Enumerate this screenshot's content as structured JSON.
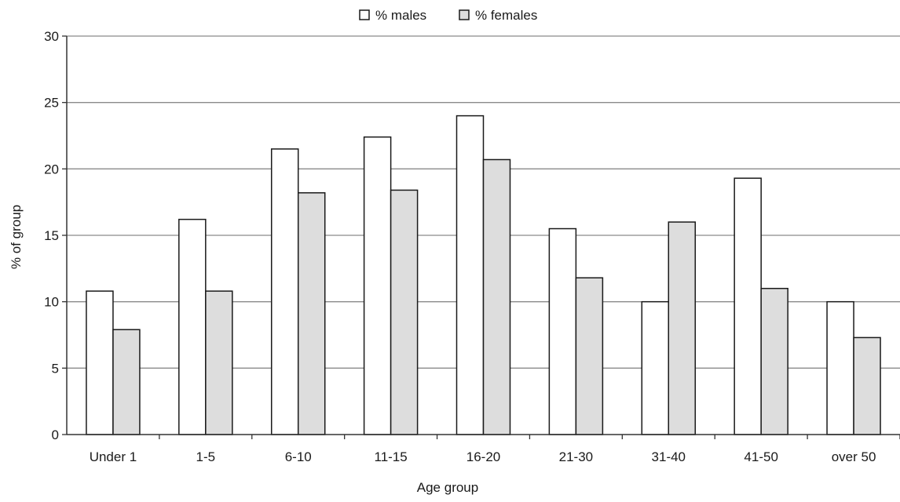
{
  "chart_data": {
    "type": "bar",
    "categories": [
      "Under 1",
      "1-5",
      "6-10",
      "11-15",
      "16-20",
      "21-30",
      "31-40",
      "41-50",
      "over 50"
    ],
    "series": [
      {
        "name": "% males",
        "values": [
          10.8,
          16.2,
          21.5,
          22.4,
          24.0,
          15.5,
          10.0,
          19.3,
          10.0
        ],
        "color": "#ffffff"
      },
      {
        "name": "% females",
        "values": [
          7.9,
          10.8,
          18.2,
          18.4,
          20.7,
          11.8,
          16.0,
          11.0,
          7.3
        ],
        "color": "#dddddd"
      }
    ],
    "xlabel": "Age group",
    "ylabel": "% of group",
    "ylim": [
      0,
      30
    ],
    "yticks": [
      "0",
      "5",
      "10",
      "15",
      "20",
      "25",
      "30"
    ],
    "grid": true,
    "legend_position": "top-center"
  }
}
